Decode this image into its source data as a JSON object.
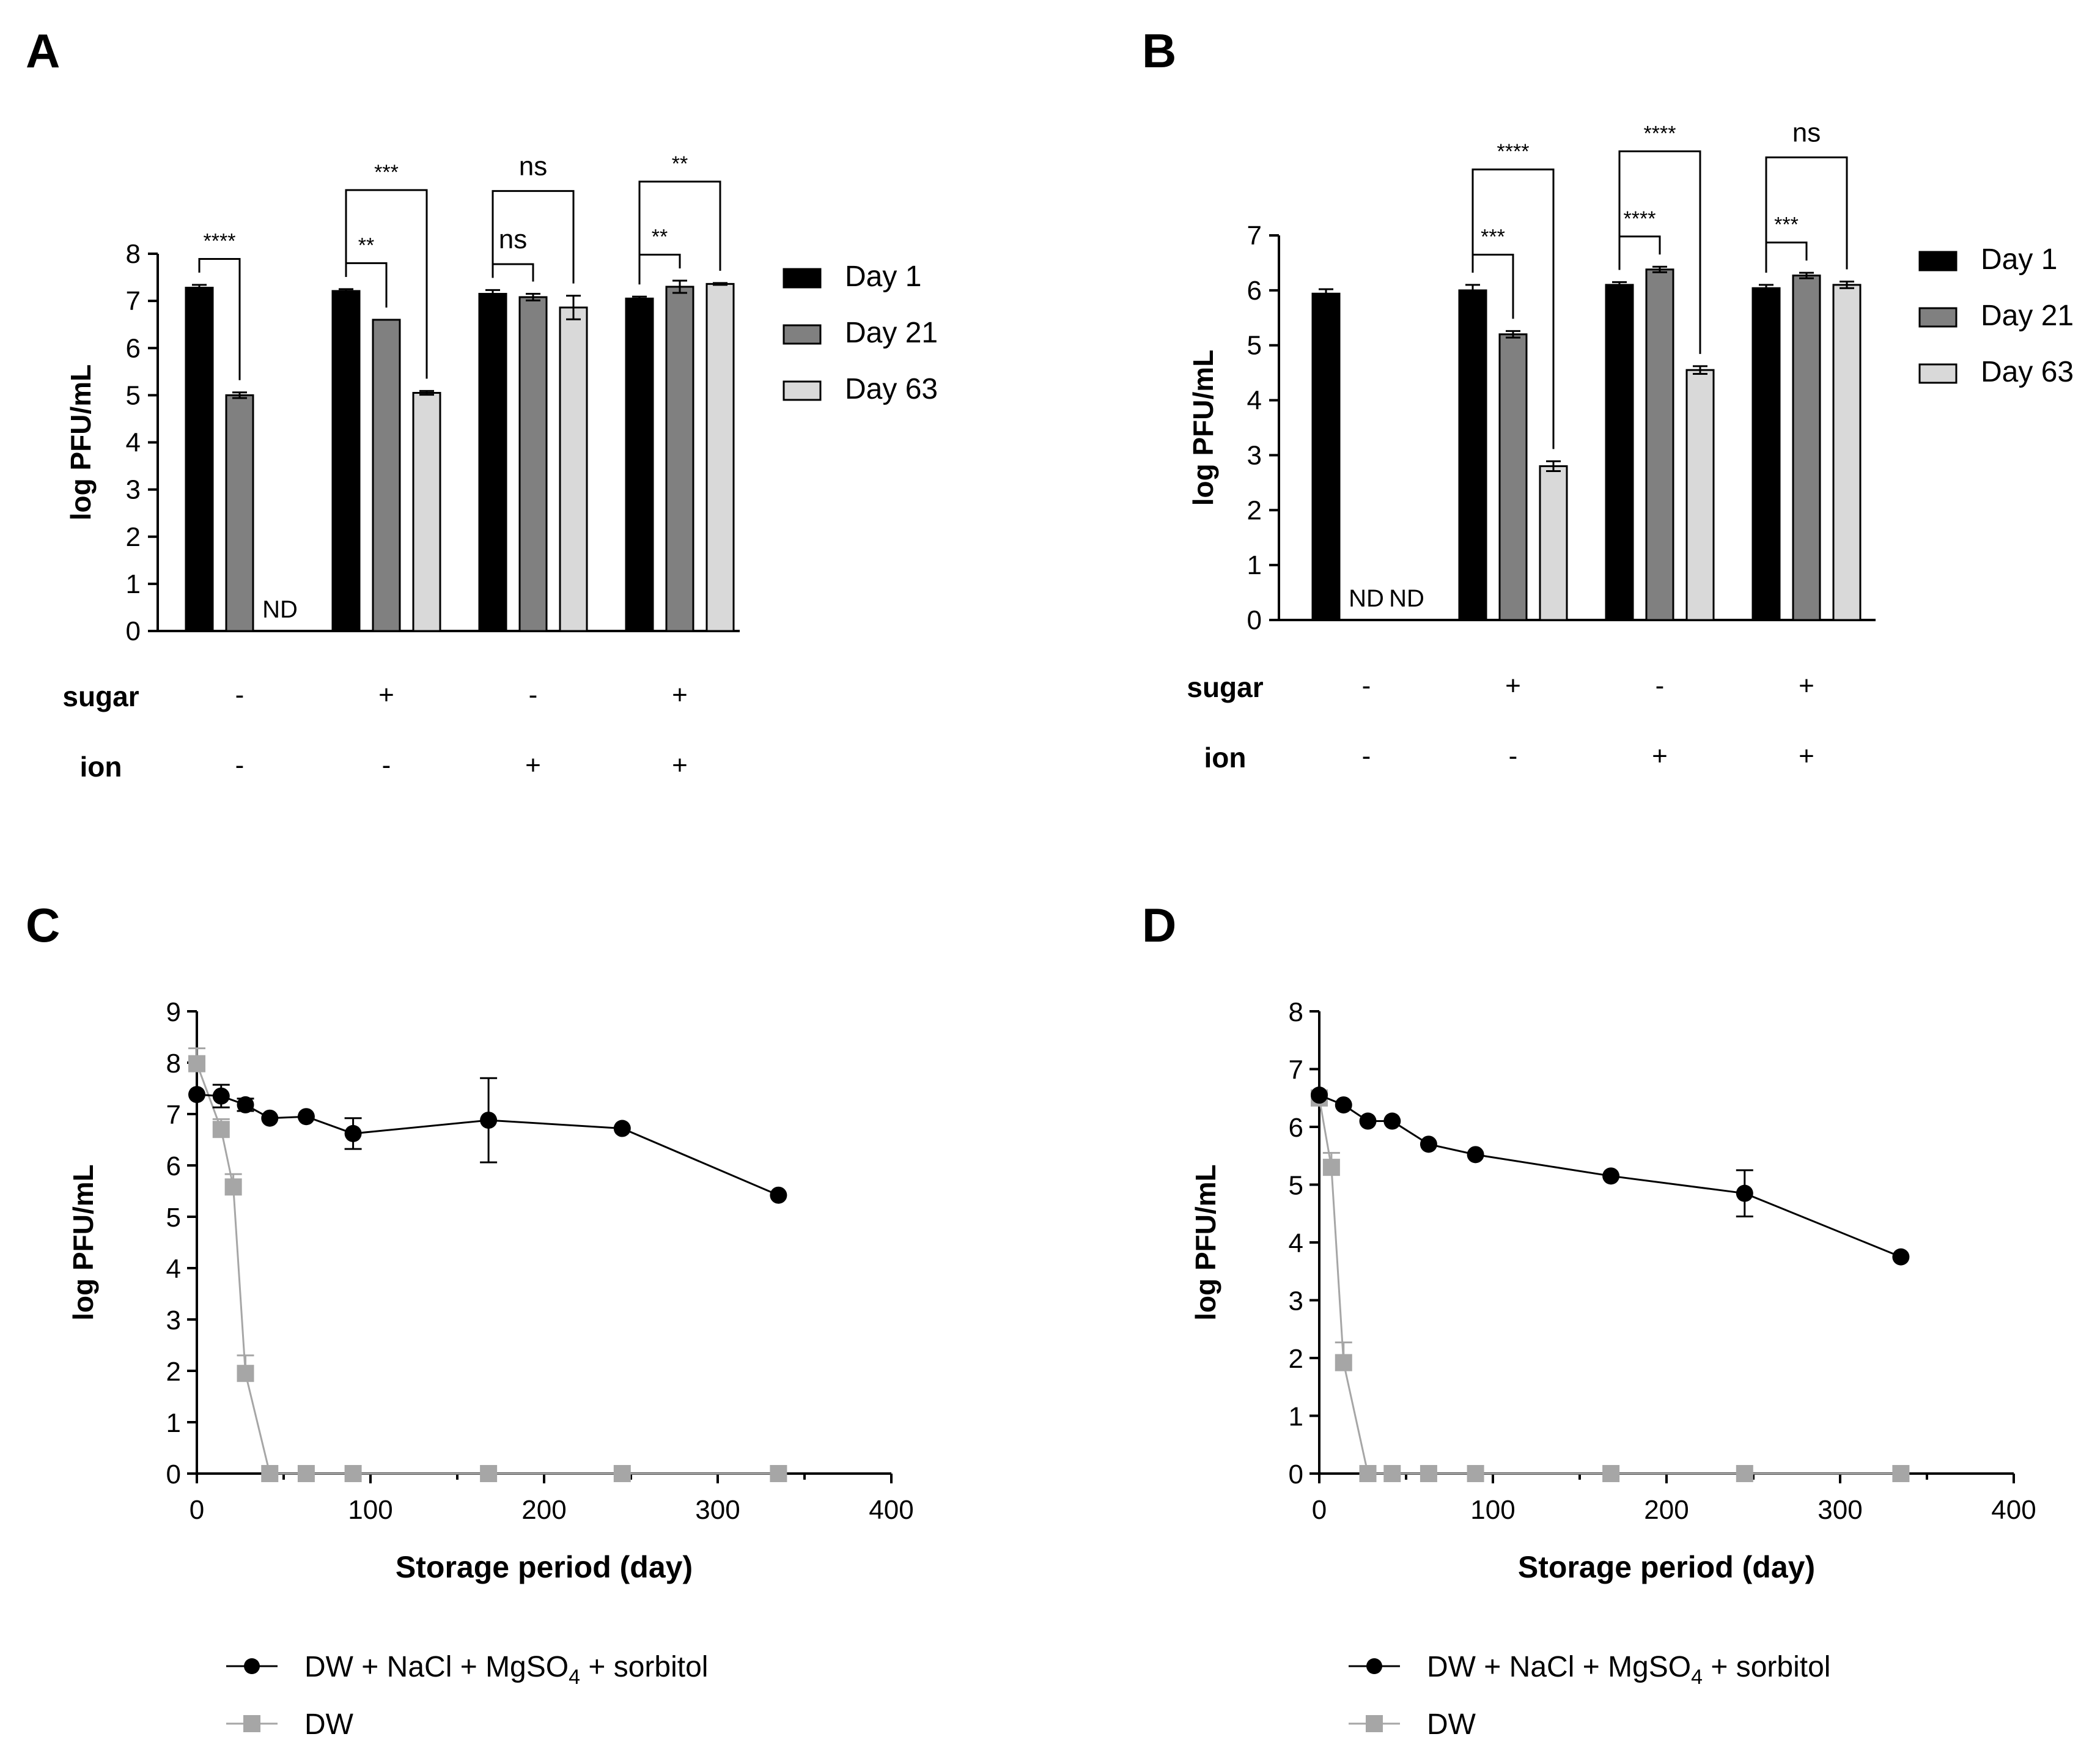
{
  "colors": {
    "day1": "#000000",
    "day21": "#808080",
    "day63": "#d9d9d9",
    "series_salts": "#000000",
    "series_dw": "#a6a6a6"
  },
  "chart_data": [
    {
      "panel": "A",
      "type": "bar",
      "ylabel": "log PFU/mL",
      "ylim": [
        0,
        8
      ],
      "yticks": [
        "0",
        "1",
        "2",
        "3",
        "4",
        "5",
        "6",
        "7",
        "8"
      ],
      "legend": [
        "Day 1",
        "Day 21",
        "Day 63"
      ],
      "series": [
        {
          "name": "Day 1",
          "values": [
            7.28,
            7.21,
            7.15,
            7.05
          ],
          "errors": [
            0.06,
            0.04,
            0.08,
            0.04
          ]
        },
        {
          "name": "Day 21",
          "values": [
            5.0,
            6.6,
            7.08,
            7.3
          ],
          "errors": [
            0.06,
            0.0,
            0.07,
            0.13
          ]
        },
        {
          "name": "Day 63",
          "values": [
            null,
            5.05,
            6.86,
            7.36
          ],
          "errors": [
            null,
            0.04,
            0.25,
            0.02
          ]
        }
      ],
      "nd_labels": [
        {
          "group": 0,
          "bar": 2,
          "text": "ND"
        }
      ],
      "conditions": {
        "sugar_label": "sugar",
        "ion_label": "ion",
        "sugar": [
          "-",
          "+",
          "-",
          "+"
        ],
        "ion": [
          "-",
          "-",
          "+",
          "+"
        ]
      },
      "significance": [
        {
          "group": 0,
          "from": 0,
          "to": 1,
          "level": 1,
          "label": "****"
        },
        {
          "group": 1,
          "from": 0,
          "to": 1,
          "level": 1,
          "label": "**"
        },
        {
          "group": 1,
          "from": 0,
          "to": 2,
          "level": 2,
          "label": "***"
        },
        {
          "group": 2,
          "from": 0,
          "to": 1,
          "level": 1,
          "label": "ns"
        },
        {
          "group": 2,
          "from": 0,
          "to": 2,
          "level": 2,
          "label": "ns"
        },
        {
          "group": 3,
          "from": 0,
          "to": 1,
          "level": 1,
          "label": "**"
        },
        {
          "group": 3,
          "from": 0,
          "to": 2,
          "level": 2,
          "label": "**"
        }
      ]
    },
    {
      "panel": "B",
      "type": "bar",
      "ylabel": "log PFU/mL",
      "ylim": [
        0,
        7
      ],
      "yticks": [
        "0",
        "1",
        "2",
        "3",
        "4",
        "5",
        "6",
        "7"
      ],
      "legend": [
        "Day 1",
        "Day 21",
        "Day 63"
      ],
      "series": [
        {
          "name": "Day 1",
          "values": [
            5.94,
            6.0,
            6.1,
            6.04
          ],
          "errors": [
            0.08,
            0.1,
            0.05,
            0.06
          ]
        },
        {
          "name": "Day 21",
          "values": [
            null,
            5.2,
            6.38,
            6.27
          ],
          "errors": [
            null,
            0.06,
            0.05,
            0.05
          ]
        },
        {
          "name": "Day 63",
          "values": [
            null,
            2.8,
            4.55,
            6.1
          ],
          "errors": [
            null,
            0.09,
            0.07,
            0.06
          ]
        }
      ],
      "nd_labels": [
        {
          "group": 0,
          "bar": 1,
          "text": "ND"
        },
        {
          "group": 0,
          "bar": 2,
          "text": "ND"
        }
      ],
      "conditions": {
        "sugar_label": "sugar",
        "ion_label": "ion",
        "sugar": [
          "-",
          "+",
          "-",
          "+"
        ],
        "ion": [
          "-",
          "-",
          "+",
          "+"
        ]
      },
      "significance": [
        {
          "group": 1,
          "from": 0,
          "to": 1,
          "level": 1,
          "label": "***"
        },
        {
          "group": 1,
          "from": 0,
          "to": 2,
          "level": 2,
          "label": "****"
        },
        {
          "group": 2,
          "from": 0,
          "to": 1,
          "level": 1,
          "label": "****"
        },
        {
          "group": 2,
          "from": 0,
          "to": 2,
          "level": 2,
          "label": "****"
        },
        {
          "group": 3,
          "from": 0,
          "to": 1,
          "level": 1,
          "label": "***"
        },
        {
          "group": 3,
          "from": 0,
          "to": 2,
          "level": 2,
          "label": "ns"
        }
      ]
    },
    {
      "panel": "C",
      "type": "line",
      "xlabel": "Storage period (day)",
      "ylabel": "log PFU/mL",
      "xlim": [
        0,
        400
      ],
      "ylim": [
        0,
        9
      ],
      "xticks": [
        "0",
        "100",
        "200",
        "300",
        "400"
      ],
      "yticks": [
        "0",
        "1",
        "2",
        "3",
        "4",
        "5",
        "6",
        "7",
        "8",
        "9"
      ],
      "series": [
        {
          "name": "DW + NaCl + MgSO",
          "name_sub": "4",
          "name_suffix": " + sorbitol",
          "marker": "circle",
          "x": [
            0,
            14,
            28,
            42,
            63,
            90,
            168,
            245,
            335
          ],
          "y": [
            7.38,
            7.35,
            7.18,
            6.92,
            6.95,
            6.62,
            6.88,
            6.72,
            5.42
          ],
          "err": [
            0,
            0.22,
            0.12,
            0,
            0,
            0.3,
            0.82,
            0,
            0
          ]
        },
        {
          "name": "DW",
          "marker": "square",
          "x": [
            0,
            14,
            21,
            28,
            42,
            63,
            90,
            168,
            245,
            335
          ],
          "y": [
            7.98,
            6.7,
            5.58,
            1.95,
            0,
            0,
            0,
            0,
            0,
            0
          ],
          "err": [
            0.3,
            0.2,
            0.25,
            0.35,
            0,
            0,
            0,
            0,
            0,
            0
          ]
        }
      ]
    },
    {
      "panel": "D",
      "type": "line",
      "xlabel": "Storage period (day)",
      "ylabel": "log PFU/mL",
      "xlim": [
        0,
        400
      ],
      "ylim": [
        0,
        8
      ],
      "xticks": [
        "0",
        "100",
        "200",
        "300",
        "400"
      ],
      "yticks": [
        "0",
        "1",
        "2",
        "3",
        "4",
        "5",
        "6",
        "7",
        "8"
      ],
      "series": [
        {
          "name": "DW + NaCl + MgSO",
          "name_sub": "4",
          "name_suffix": " + sorbitol",
          "marker": "circle",
          "x": [
            0,
            14,
            28,
            42,
            63,
            90,
            168,
            245,
            335
          ],
          "y": [
            6.55,
            6.38,
            6.1,
            6.1,
            5.7,
            5.52,
            5.15,
            4.85,
            3.75
          ],
          "err": [
            0,
            0,
            0,
            0,
            0,
            0,
            0,
            0.4,
            0
          ]
        },
        {
          "name": "DW",
          "marker": "square",
          "x": [
            0,
            7,
            14,
            28,
            42,
            63,
            90,
            168,
            245,
            335
          ],
          "y": [
            6.5,
            5.3,
            1.92,
            0,
            0,
            0,
            0,
            0,
            0,
            0
          ],
          "err": [
            0.1,
            0.25,
            0.35,
            0,
            0,
            0,
            0,
            0,
            0,
            0
          ]
        }
      ]
    }
  ]
}
